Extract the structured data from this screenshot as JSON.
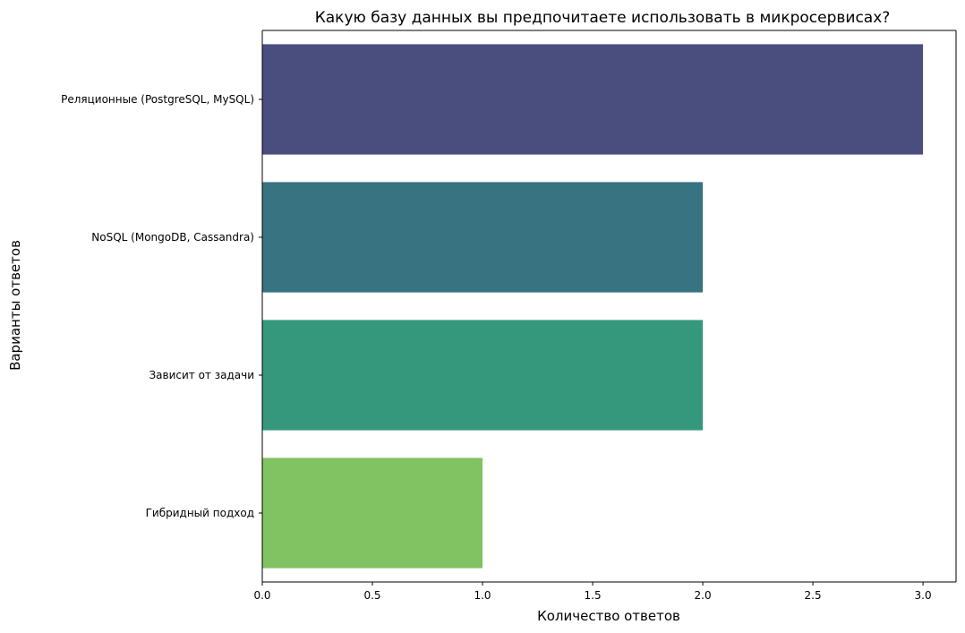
{
  "chart_data": {
    "type": "bar",
    "orientation": "horizontal",
    "title": "Какую базу данных вы предпочитаете использовать в микросервисах?",
    "xlabel": "Количество ответов",
    "ylabel": "Варианты ответов",
    "categories": [
      "Реляционные (PostgreSQL, MySQL)",
      "NoSQL (MongoDB, Cassandra)",
      "Зависит от задачи",
      "Гибридный подход"
    ],
    "values": [
      3,
      2,
      2,
      1
    ],
    "colors": [
      "#4a4e7e",
      "#377380",
      "#35987c",
      "#81c262"
    ],
    "xlim": [
      0,
      3.15
    ],
    "xticks": [
      "0.0",
      "0.5",
      "1.0",
      "1.5",
      "2.0",
      "2.5",
      "3.0"
    ],
    "grid": false,
    "legend": "none"
  }
}
